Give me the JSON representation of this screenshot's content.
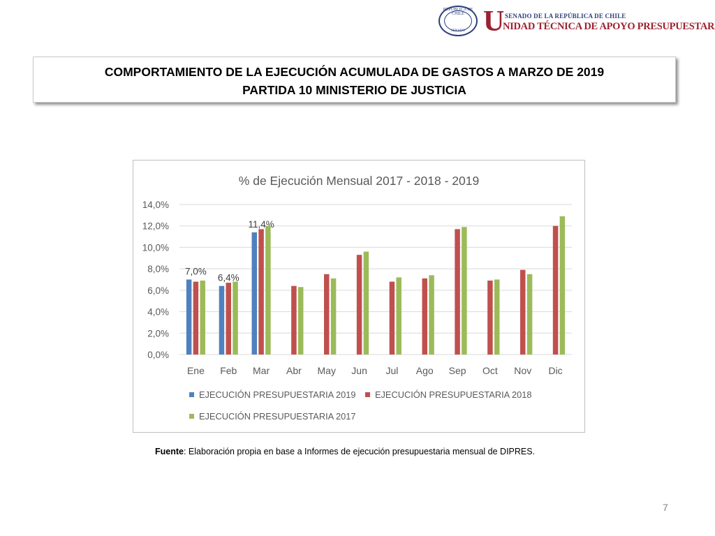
{
  "logo": {
    "seal_top": "REPÚBLICA DE CHILE",
    "seal_bottom": "SENADO",
    "initial": "U",
    "line1": "SENADO DE LA REPÚBLICA DE CHILE",
    "line2": "NIDAD TÉCNICA DE APOYO PRESUPUESTARIO"
  },
  "title": {
    "line1": "COMPORTAMIENTO DE LA EJECUCIÓN ACUMULADA DE GASTOS A MARZO DE 2019",
    "line2": "PARTIDA 10 MINISTERIO DE JUSTICIA"
  },
  "source": {
    "label": "Fuente",
    "text": ": Elaboración propia en base  a Informes de ejecución presupuestaria mensual de DIPRES."
  },
  "page_number": "7",
  "chart_data": {
    "type": "bar",
    "title": "% de Ejecución Mensual 2017 - 2018 - 2019",
    "categories": [
      "Ene",
      "Feb",
      "Mar",
      "Abr",
      "May",
      "Jun",
      "Jul",
      "Ago",
      "Sep",
      "Oct",
      "Nov",
      "Dic"
    ],
    "ylim": [
      0,
      14
    ],
    "yticks": [
      "0,0%",
      "2,0%",
      "4,0%",
      "6,0%",
      "8,0%",
      "10,0%",
      "12,0%",
      "14,0%"
    ],
    "grid": true,
    "legend_position": "bottom",
    "series": [
      {
        "name": "EJECUCIÓN PRESUPUESTARIA 2019",
        "color": "#4f81bd",
        "values": [
          7.0,
          6.4,
          11.4,
          null,
          null,
          null,
          null,
          null,
          null,
          null,
          null,
          null
        ],
        "labels": [
          "7,0%",
          "6,4%",
          "11,4%",
          null,
          null,
          null,
          null,
          null,
          null,
          null,
          null,
          null
        ]
      },
      {
        "name": "EJECUCIÓN PRESUPUESTARIA 2018",
        "color": "#c0504d",
        "values": [
          6.8,
          6.7,
          11.7,
          6.4,
          7.5,
          9.3,
          6.8,
          7.1,
          11.7,
          6.9,
          7.9,
          12.0
        ]
      },
      {
        "name": "EJECUCIÓN PRESUPUESTARIA 2017",
        "color": "#9bbb59",
        "values": [
          6.9,
          6.8,
          12.0,
          6.3,
          7.1,
          9.6,
          7.2,
          7.4,
          11.9,
          7.0,
          7.5,
          12.9
        ]
      }
    ]
  }
}
